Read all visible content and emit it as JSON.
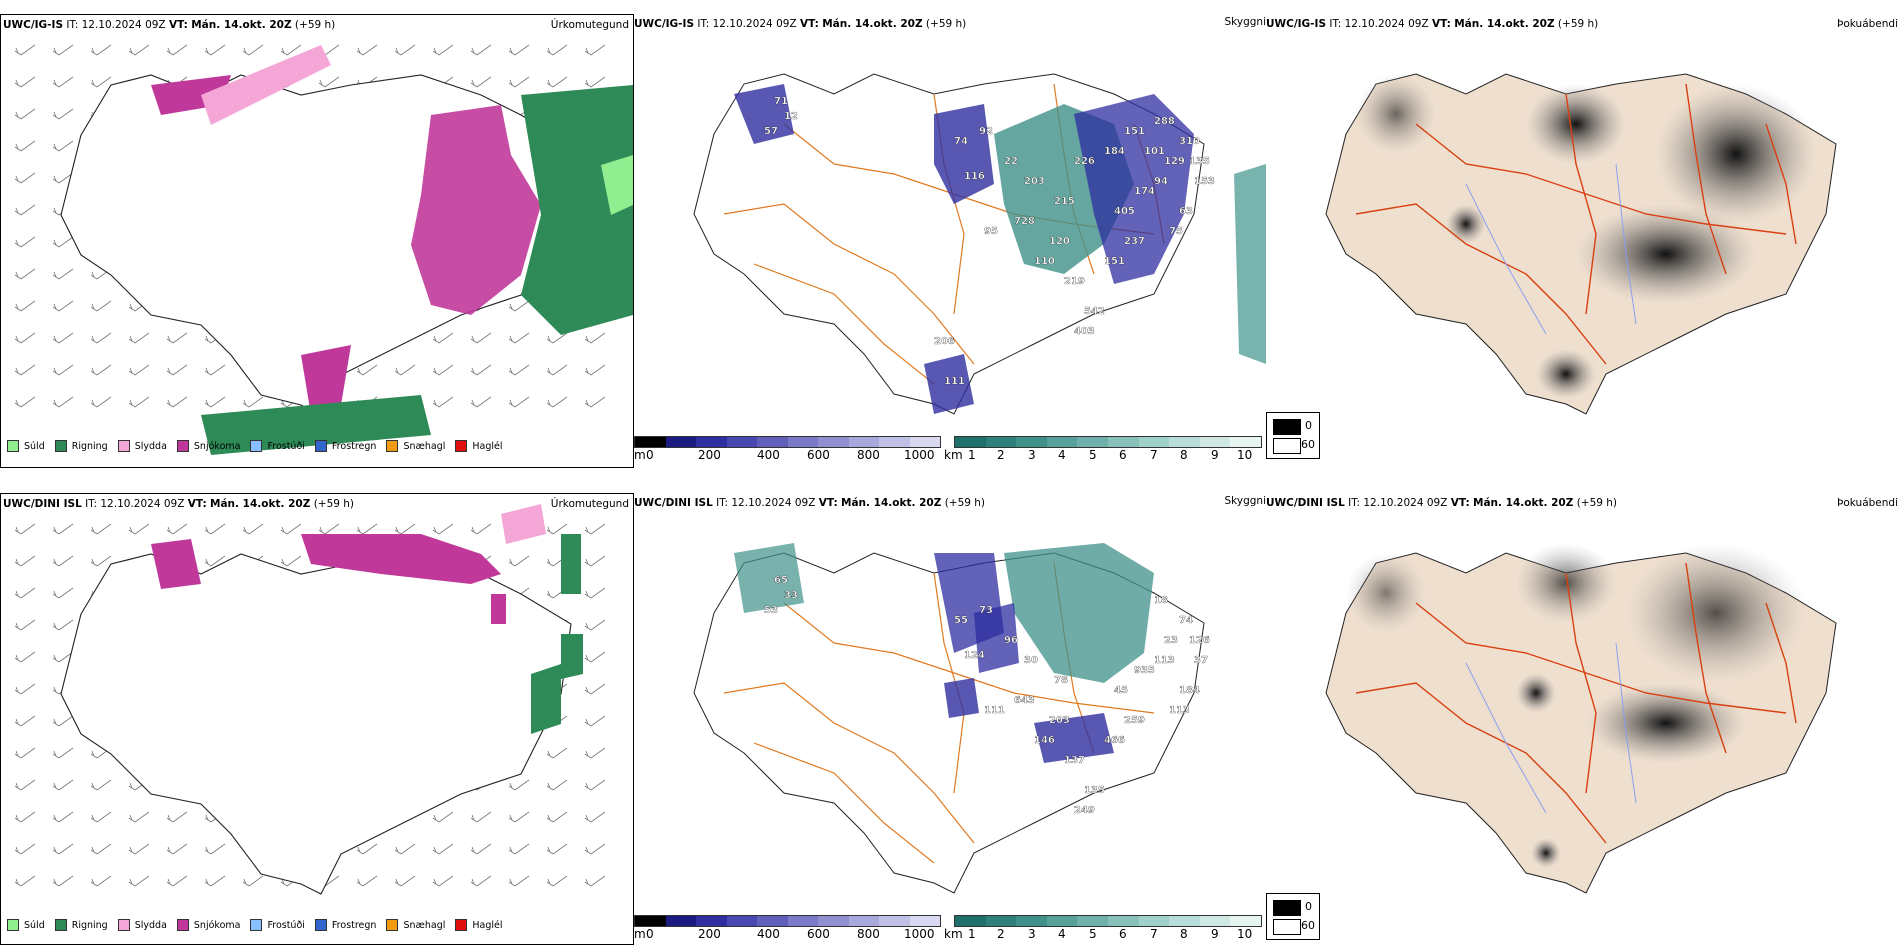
{
  "rows": [
    {
      "model": "UWC/IG-IS",
      "it_label": "IT:",
      "it_value": "12.10.2024 09Z",
      "vt_label": "VT:",
      "vt_value": "Mán. 14.okt. 20Z",
      "lead": "(+59 h)",
      "precip_name": "Úrkomutegund",
      "vis_name": "Skyggni",
      "fog_name": "Þokuábendi"
    },
    {
      "model": "UWC/DINI ISL",
      "it_label": "IT:",
      "it_value": "12.10.2024 09Z",
      "vt_label": "VT:",
      "vt_value": "Mán. 14.okt. 20Z",
      "lead": "(+59 h)",
      "precip_name": "Úrkomutegund",
      "vis_name": "Skyggni",
      "fog_name": "Þokuábendi"
    }
  ],
  "precip_legend": [
    {
      "label": "Súld",
      "color": "#90ee90"
    },
    {
      "label": "Rigning",
      "color": "#2e8b57"
    },
    {
      "label": "Slydda",
      "color": "#f4a6d7"
    },
    {
      "label": "Snjókoma",
      "color": "#c0399a"
    },
    {
      "label": "Frostúði",
      "color": "#87bfff"
    },
    {
      "label": "Frostregn",
      "color": "#3366cc"
    },
    {
      "label": "Snæhagl",
      "color": "#f39c12"
    },
    {
      "label": "Haglél",
      "color": "#e01010"
    }
  ],
  "ceiling_bar": {
    "unit": "m",
    "ticks": [
      "0",
      "200",
      "400",
      "600",
      "800",
      "1000"
    ],
    "colors": [
      "#000000",
      "#1a1a80",
      "#2e2ea0",
      "#4848b0",
      "#6060bb",
      "#7a7ac8",
      "#9090d0",
      "#a8a8dc",
      "#c0c0e6",
      "#d8d8f0"
    ]
  },
  "vis_bar": {
    "unit": "km",
    "ticks": [
      "1",
      "2",
      "3",
      "4",
      "5",
      "6",
      "7",
      "8",
      "9",
      "10"
    ],
    "colors": [
      "#1f6f6a",
      "#2f807a",
      "#40908a",
      "#58a09a",
      "#70b0aa",
      "#88c0ba",
      "#a0d0ca",
      "#b8dcd8",
      "#d0e8e4",
      "#e6f4f2"
    ]
  },
  "fog_legend": {
    "ticks": [
      "0",
      "60"
    ],
    "colors": [
      "#000000",
      "#ffffff"
    ]
  },
  "map_labels": {
    "row0": [
      "71",
      "12",
      "57",
      "74",
      "92",
      "22",
      "116",
      "203",
      "728",
      "95",
      "215",
      "120",
      "110",
      "219",
      "151",
      "237",
      "542",
      "403",
      "405",
      "174",
      "94",
      "129",
      "63",
      "75",
      "135",
      "153",
      "310",
      "288",
      "101",
      "151",
      "184",
      "226",
      "206",
      "111"
    ],
    "row1": [
      "65",
      "33",
      "53",
      "55",
      "73",
      "96",
      "124",
      "30",
      "643",
      "111",
      "78",
      "203",
      "146",
      "137",
      "466",
      "259",
      "135",
      "249",
      "45",
      "935",
      "113",
      "23",
      "184",
      "113",
      "126",
      "37",
      "74",
      "18"
    ]
  },
  "colors": {
    "road": "#e07a20",
    "road_fog": "#d84010",
    "land_fog": "#efdfcf",
    "river_fog": "#8aa0f0"
  }
}
